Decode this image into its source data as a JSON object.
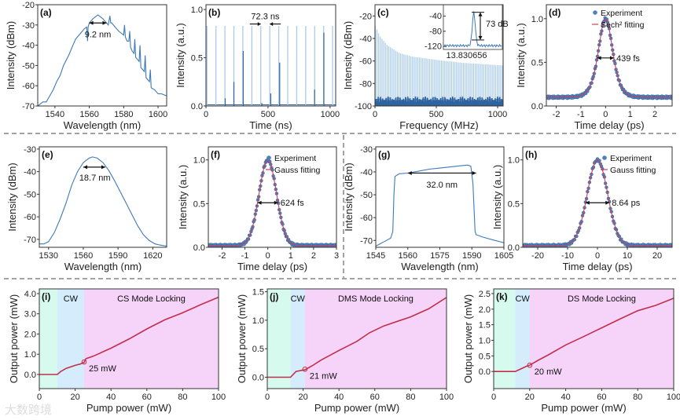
{
  "watermark": "大数跨境",
  "colors": {
    "line": "#3d7ab8",
    "light": "#a9cbea",
    "dark": "#2f64a0",
    "fit": "#d0405a",
    "power": "#c0304a",
    "green_region": "#d6fbee",
    "blue_region": "#d4ecfb",
    "pink_region": "#f6d3f8",
    "dot": "#4a82c0"
  },
  "chart_data": [
    {
      "id": "a",
      "type": "line",
      "panel_label": "(a)",
      "xlabel": "Wavelength (nm)",
      "ylabel": "Intensity (dBm)",
      "xlim": [
        1530,
        1605
      ],
      "ylim": [
        -70,
        -20
      ],
      "xticks": [
        1540,
        1560,
        1580,
        1600
      ],
      "yticks": [
        -70,
        -60,
        -50,
        -40,
        -30,
        -20
      ],
      "annotation": "9.2 nm",
      "x": [
        1530,
        1533,
        1535,
        1537,
        1539,
        1541,
        1543,
        1545,
        1548,
        1550,
        1552,
        1555,
        1557,
        1558.5,
        1559,
        1559.3,
        1560,
        1562,
        1565,
        1568,
        1570,
        1571,
        1572,
        1572.5,
        1573,
        1575,
        1577,
        1580,
        1580.5,
        1581,
        1582,
        1583,
        1583.5,
        1584,
        1585,
        1586,
        1586.5,
        1587,
        1588,
        1589,
        1589.5,
        1590,
        1591,
        1592,
        1592.5,
        1593,
        1594,
        1595,
        1595.5,
        1596,
        1598,
        1600,
        1602,
        1605
      ],
      "y": [
        -70,
        -68,
        -68,
        -65,
        -62,
        -58,
        -55,
        -50,
        -45,
        -41,
        -37,
        -34,
        -32,
        -31,
        -38,
        -31,
        -29,
        -27,
        -25,
        -27,
        -29,
        -30,
        -25.5,
        -29,
        -29,
        -31,
        -33,
        -35,
        -30,
        -36,
        -38,
        -38,
        -33,
        -41,
        -43,
        -44,
        -37,
        -46,
        -47,
        -48,
        -40,
        -51,
        -52,
        -53,
        -45,
        -56,
        -57,
        -58,
        -52,
        -61,
        -62,
        -64,
        -64,
        -65
      ]
    },
    {
      "id": "b",
      "type": "comb",
      "panel_label": "(b)",
      "xlabel": "Time (ns)",
      "ylabel": "Intensity (a.u.)",
      "xlim": [
        0,
        1045
      ],
      "ylim": [
        0,
        1.05
      ],
      "xticks": [
        0,
        500,
        1000
      ],
      "yticks": [
        "0.0",
        "0.5",
        "1.0"
      ],
      "ytick_values": [
        0,
        0.5,
        1.0
      ],
      "annotation": "72.3 ns",
      "pulse_period_ns": 72.3,
      "first_pulse_ns": 8,
      "pulse_height": 0.83,
      "secondary_pulses": [
        [
          155,
          0.08
        ],
        [
          225,
          0.25
        ],
        [
          300,
          0.57
        ],
        [
          450,
          0.03
        ],
        [
          522,
          0.13
        ],
        [
          594,
          0.45
        ],
        [
          875,
          0.17
        ],
        [
          950,
          0.76
        ]
      ]
    },
    {
      "id": "c",
      "type": "comb",
      "panel_label": "(c)",
      "xlabel": "Frequency (MHz)",
      "ylabel": "Intensity (dBm)",
      "xlim": [
        0,
        1045
      ],
      "ylim": [
        -100,
        -10
      ],
      "xticks": [
        0,
        500,
        1000
      ],
      "yticks": [
        -100,
        -80,
        -60,
        -40,
        -20
      ],
      "line_spacing_MHz": 13.83,
      "noise_floor_dBm": -95,
      "peak_envelope": [
        [
          0,
          -28
        ],
        [
          40,
          -38
        ],
        [
          100,
          -46
        ],
        [
          200,
          -53
        ],
        [
          300,
          -56
        ],
        [
          500,
          -59
        ],
        [
          700,
          -61.5
        ],
        [
          1045,
          -64
        ]
      ],
      "inset": {
        "xlabel": "13.830656",
        "yticks": [
          -40,
          -80,
          -120
        ],
        "ylim": [
          -128,
          -10
        ],
        "peak_dBm": -30,
        "floor_dBm": -118,
        "annotation": "73 dB"
      }
    },
    {
      "id": "d",
      "type": "autocorrelation",
      "panel_label": "(d)",
      "xlabel": "Time delay (ps)",
      "ylabel": "Intensity (a.u.)",
      "xlim": [
        -2.4,
        2.7
      ],
      "ylim": [
        0,
        1.16
      ],
      "xticks": [
        -2,
        -1,
        0,
        1,
        2
      ],
      "yticks": [
        "0.0",
        "0.5",
        "1.0"
      ],
      "ytick_values": [
        0,
        0.5,
        1.0
      ],
      "fit_shape": "sech2",
      "autocorr_fwhm_ps": 0.68,
      "baseline": 0.1,
      "annotation": "439 fs",
      "legend": [
        "Experiment",
        "Sech² fitting"
      ]
    },
    {
      "id": "e",
      "type": "line",
      "panel_label": "(e)",
      "xlabel": "Wavelength (nm)",
      "ylabel": "Intensity (dBm)",
      "xlim": [
        1522,
        1632
      ],
      "ylim": [
        -73.5,
        -29
      ],
      "xticks": [
        1530,
        1560,
        1590,
        1620
      ],
      "yticks": [
        -70,
        -60,
        -50,
        -40,
        -30
      ],
      "annotation": "18.7 nm",
      "x": [
        1522,
        1526,
        1530,
        1535,
        1540,
        1545,
        1550,
        1555,
        1560,
        1565,
        1568,
        1572,
        1577,
        1582,
        1587,
        1592,
        1597,
        1602,
        1607,
        1612,
        1617,
        1622,
        1626,
        1632
      ],
      "y": [
        -72,
        -72,
        -71,
        -67,
        -61,
        -54,
        -46,
        -40,
        -36,
        -34,
        -33.5,
        -34,
        -36,
        -39.5,
        -44,
        -49,
        -54,
        -59,
        -64,
        -68,
        -70.5,
        -72,
        -72.5,
        -73
      ]
    },
    {
      "id": "f",
      "type": "autocorrelation",
      "panel_label": "(f)",
      "xlabel": "Time delay (ps)",
      "ylabel": "Intensity (a.u.)",
      "xlim": [
        -2.6,
        3
      ],
      "ylim": [
        0,
        1.15
      ],
      "xticks": [
        -2,
        -1,
        0,
        1,
        2,
        3
      ],
      "yticks": [
        "0.0",
        "0.5",
        "1.0"
      ],
      "ytick_values": [
        0,
        0.5,
        1.0
      ],
      "fit_shape": "gauss",
      "autocorr_fwhm_ps": 0.9,
      "baseline": 0.02,
      "annotation": "624 fs",
      "legend": [
        "Experiment",
        "Gauss fitting"
      ]
    },
    {
      "id": "g",
      "type": "line",
      "panel_label": "(g)",
      "xlabel": "Wavelength (nm)",
      "ylabel": "Intensity (dBm)",
      "xlim": [
        1545,
        1605
      ],
      "ylim": [
        -73,
        -29
      ],
      "xticks": [
        1545,
        1560,
        1575,
        1590,
        1605
      ],
      "yticks": [
        -70,
        -60,
        -50,
        -40,
        -30
      ],
      "annotation": "32.0 nm",
      "x": [
        1545,
        1549,
        1552,
        1553,
        1553.5,
        1554,
        1556,
        1560,
        1565,
        1570,
        1575,
        1580,
        1585,
        1588,
        1589.5,
        1590.5,
        1591.5,
        1592,
        1595,
        1600,
        1605
      ],
      "y": [
        -72.5,
        -70.5,
        -69,
        -66,
        -50,
        -42,
        -40.8,
        -40.5,
        -39.7,
        -38.8,
        -38.3,
        -37.8,
        -37.3,
        -37,
        -37.5,
        -45,
        -66,
        -67.5,
        -68.5,
        -69.8,
        -71
      ]
    },
    {
      "id": "h",
      "type": "autocorrelation",
      "panel_label": "(h)",
      "xlabel": "Time delay (ps)",
      "ylabel": "Intensity (a.u.)",
      "xlim": [
        -25,
        25
      ],
      "ylim": [
        0,
        1.15
      ],
      "xticks": [
        -20,
        -10,
        0,
        10,
        20
      ],
      "yticks": [
        "0.0",
        "0.5",
        "1.0"
      ],
      "ytick_values": [
        0,
        0.5,
        1.0
      ],
      "fit_shape": "gauss",
      "autocorr_fwhm_ps": 8,
      "baseline": 0.02,
      "annotation": "8.64 ps",
      "legend": [
        "Experiment",
        "Gauss fitting"
      ]
    },
    {
      "id": "i",
      "type": "line",
      "panel_label": "(i)",
      "xlabel": "Pump power (mW)",
      "ylabel": "Output power (mW)",
      "xlim": [
        0,
        100
      ],
      "ylim": [
        -0.7,
        4.23
      ],
      "xticks": [
        0,
        20,
        40,
        60,
        80,
        100
      ],
      "yticks": [
        "0.0",
        "1.0",
        "2.0",
        "3.0",
        "4.0"
      ],
      "ytick_values": [
        0,
        1,
        2,
        3,
        4
      ],
      "regions": [
        {
          "from": 0,
          "to": 10,
          "kind": "green",
          "label": ""
        },
        {
          "from": 10,
          "to": 25,
          "kind": "blue",
          "label": "CW"
        },
        {
          "from": 25,
          "to": 100,
          "kind": "pink",
          "label": "CS Mode Locking"
        }
      ],
      "annotation": "25 mW",
      "threshold_marker": [
        25,
        0.62
      ],
      "x": [
        0,
        10,
        12,
        15,
        20,
        23,
        25,
        26,
        30,
        40,
        50,
        60,
        70,
        80,
        90,
        100
      ],
      "y": [
        0,
        0,
        0.15,
        0.3,
        0.45,
        0.52,
        0.6,
        0.78,
        0.9,
        1.3,
        1.75,
        2.25,
        2.7,
        3.05,
        3.45,
        3.82
      ]
    },
    {
      "id": "j",
      "type": "line",
      "panel_label": "(j)",
      "xlabel": "Pump power (mW)",
      "ylabel": "Output power (mW)",
      "xlim": [
        0,
        100
      ],
      "ylim": [
        -0.2,
        1.55
      ],
      "xticks": [
        0,
        20,
        40,
        60,
        80,
        100
      ],
      "yticks": [
        "0.0",
        "0.5",
        "1.0",
        "1.5"
      ],
      "ytick_values": [
        0,
        0.5,
        1,
        1.5
      ],
      "regions": [
        {
          "from": 0,
          "to": 13,
          "kind": "green",
          "label": ""
        },
        {
          "from": 13,
          "to": 21,
          "kind": "blue",
          "label": "CW"
        },
        {
          "from": 21,
          "to": 100,
          "kind": "pink",
          "label": "DMS Mode Locking"
        }
      ],
      "annotation": "21 mW",
      "threshold_marker": [
        21,
        0.14
      ],
      "x": [
        0,
        13,
        16,
        19,
        21,
        25,
        30,
        40,
        50,
        57,
        65,
        80,
        90,
        100
      ],
      "y": [
        0,
        0,
        0.1,
        0.12,
        0.13,
        0.2,
        0.3,
        0.47,
        0.63,
        0.78,
        0.9,
        1.06,
        1.2,
        1.4
      ]
    },
    {
      "id": "k",
      "type": "line",
      "panel_label": "(k)",
      "xlabel": "Pump power (mW)",
      "ylabel": "Output power (mW)",
      "xlim": [
        0,
        100
      ],
      "ylim": [
        -0.55,
        2.65
      ],
      "xticks": [
        0,
        20,
        40,
        60,
        80,
        100
      ],
      "yticks": [
        "0.0",
        "0.5",
        "1.0",
        "1.5",
        "2.0",
        "2.5"
      ],
      "ytick_values": [
        0,
        0.5,
        1,
        1.5,
        2,
        2.5
      ],
      "regions": [
        {
          "from": 0,
          "to": 12,
          "kind": "green",
          "label": ""
        },
        {
          "from": 12,
          "to": 20,
          "kind": "blue",
          "label": "CW"
        },
        {
          "from": 20,
          "to": 100,
          "kind": "pink",
          "label": "DS Mode Locking"
        }
      ],
      "annotation": "20 mW",
      "threshold_marker": [
        20,
        0.2
      ],
      "x": [
        0,
        12,
        15,
        18,
        20,
        25,
        30,
        40,
        50,
        60,
        70,
        80,
        90,
        100
      ],
      "y": [
        0,
        0,
        0.08,
        0.16,
        0.2,
        0.37,
        0.52,
        0.85,
        1.12,
        1.4,
        1.68,
        1.95,
        2.12,
        2.35
      ]
    }
  ]
}
